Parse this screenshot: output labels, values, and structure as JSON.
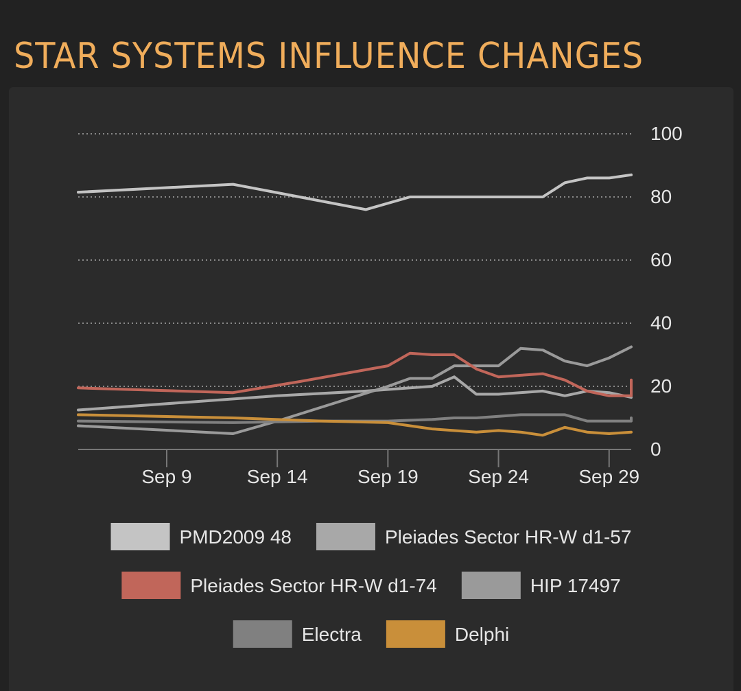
{
  "page": {
    "title": "STAR SYSTEMS INFLUENCE CHANGES"
  },
  "colors": {
    "title": "#f0ad5b",
    "panel": "#2b2b2b",
    "background": "#222222",
    "text": "#e6e6e6",
    "grid": "#8a8a8a",
    "axis": "#777777"
  },
  "chart_data": {
    "type": "line",
    "x_type": "date",
    "xlim": [
      "2018-09-05",
      "2018-09-30"
    ],
    "ylim": [
      0,
      100
    ],
    "y_ticks": [
      0,
      20,
      40,
      60,
      80,
      100
    ],
    "y_axis_side": "right",
    "x_ticks": [
      {
        "date": "2018-09-09",
        "label": "Sep 9"
      },
      {
        "date": "2018-09-14",
        "label": "Sep 14"
      },
      {
        "date": "2018-09-19",
        "label": "Sep 19"
      },
      {
        "date": "2018-09-24",
        "label": "Sep 24"
      },
      {
        "date": "2018-09-29",
        "label": "Sep 29"
      }
    ],
    "grid": "horizontal dotted",
    "legend_position": "bottom",
    "series": [
      {
        "name": "PMD2009 48",
        "color": "#c4c4c4",
        "points": [
          [
            "2018-09-05",
            81.5
          ],
          [
            "2018-09-12",
            84
          ],
          [
            "2018-09-18",
            76
          ],
          [
            "2018-09-20",
            80
          ],
          [
            "2018-09-26",
            80
          ],
          [
            "2018-09-27",
            84.5
          ],
          [
            "2018-09-28",
            86
          ],
          [
            "2018-09-29",
            86
          ],
          [
            "2018-09-30",
            87
          ]
        ]
      },
      {
        "name": "Pleiades Sector HR-W d1-57",
        "color": "#a8a8a8",
        "points": [
          [
            "2018-09-05",
            12.5
          ],
          [
            "2018-09-10",
            15
          ],
          [
            "2018-09-14",
            17
          ],
          [
            "2018-09-18",
            18.5
          ],
          [
            "2018-09-20",
            19.5
          ],
          [
            "2018-09-21",
            20
          ],
          [
            "2018-09-22",
            23
          ],
          [
            "2018-09-23",
            17.5
          ],
          [
            "2018-09-24",
            17.5
          ],
          [
            "2018-09-26",
            18.5
          ],
          [
            "2018-09-27",
            17
          ],
          [
            "2018-09-28",
            18.5
          ],
          [
            "2018-09-29",
            18
          ],
          [
            "2018-09-30",
            16.5
          ]
        ]
      },
      {
        "name": "Pleiades Sector HR-W d1-74",
        "color": "#c1665a",
        "points": [
          [
            "2018-09-05",
            19.5
          ],
          [
            "2018-09-12",
            18
          ],
          [
            "2018-09-15",
            21.5
          ],
          [
            "2018-09-19",
            26.5
          ],
          [
            "2018-09-20",
            30.5
          ],
          [
            "2018-09-21",
            30
          ],
          [
            "2018-09-22",
            30
          ],
          [
            "2018-09-23",
            25.5
          ],
          [
            "2018-09-24",
            23
          ],
          [
            "2018-09-25",
            23.5
          ],
          [
            "2018-09-26",
            24
          ],
          [
            "2018-09-27",
            22
          ],
          [
            "2018-09-28",
            18.5
          ],
          [
            "2018-09-29",
            17
          ],
          [
            "2018-09-30",
            17
          ],
          [
            "2018-09-30",
            22
          ],
          [
            "2018-09-30",
            22
          ]
        ]
      },
      {
        "name": "HIP 17497",
        "color": "#9a9a9a",
        "points": [
          [
            "2018-09-05",
            7.5
          ],
          [
            "2018-09-12",
            5
          ],
          [
            "2018-09-14",
            9
          ],
          [
            "2018-09-19",
            20
          ],
          [
            "2018-09-20",
            22.5
          ],
          [
            "2018-09-21",
            22.5
          ],
          [
            "2018-09-22",
            26.5
          ],
          [
            "2018-09-23",
            26.5
          ],
          [
            "2018-09-24",
            26.5
          ],
          [
            "2018-09-25",
            32
          ],
          [
            "2018-09-26",
            31.5
          ],
          [
            "2018-09-27",
            28
          ],
          [
            "2018-09-28",
            26.5
          ],
          [
            "2018-09-29",
            29
          ],
          [
            "2018-09-30",
            32.5
          ]
        ]
      },
      {
        "name": "Electra",
        "color": "#808080",
        "points": [
          [
            "2018-09-05",
            9
          ],
          [
            "2018-09-12",
            8.5
          ],
          [
            "2018-09-16",
            9
          ],
          [
            "2018-09-19",
            9
          ],
          [
            "2018-09-21",
            9.5
          ],
          [
            "2018-09-22",
            10
          ],
          [
            "2018-09-23",
            10
          ],
          [
            "2018-09-24",
            10.5
          ],
          [
            "2018-09-25",
            11
          ],
          [
            "2018-09-26",
            11
          ],
          [
            "2018-09-27",
            11
          ],
          [
            "2018-09-28",
            9
          ],
          [
            "2018-09-29",
            9
          ],
          [
            "2018-09-30",
            9
          ],
          [
            "2018-09-30",
            10
          ]
        ]
      },
      {
        "name": "Delphi",
        "color": "#c98f3a",
        "points": [
          [
            "2018-09-05",
            11
          ],
          [
            "2018-09-12",
            10
          ],
          [
            "2018-09-16",
            9
          ],
          [
            "2018-09-19",
            8.5
          ],
          [
            "2018-09-21",
            6.5
          ],
          [
            "2018-09-23",
            5.5
          ],
          [
            "2018-09-24",
            6
          ],
          [
            "2018-09-25",
            5.5
          ],
          [
            "2018-09-26",
            4.5
          ],
          [
            "2018-09-27",
            7
          ],
          [
            "2018-09-28",
            5.5
          ],
          [
            "2018-09-29",
            5
          ],
          [
            "2018-09-30",
            5.5
          ]
        ]
      }
    ],
    "legend_rows": [
      [
        "PMD2009 48",
        "Pleiades Sector HR-W d1-57"
      ],
      [
        "Pleiades Sector HR-W d1-74",
        "HIP 17497"
      ],
      [
        "Electra",
        "Delphi"
      ]
    ]
  }
}
